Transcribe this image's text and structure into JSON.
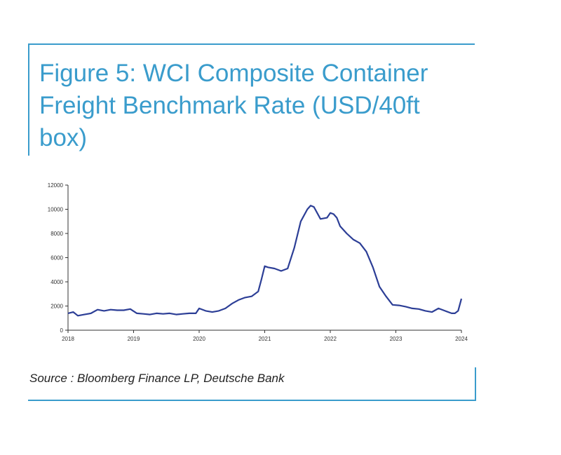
{
  "figure": {
    "title": "Figure 5: WCI Composite Container Freight Benchmark Rate (USD/40ft box)",
    "source": "Source : Bloomberg Finance LP, Deutsche Bank"
  },
  "colors": {
    "accent": "#3a9ccc",
    "line": "#2c3e96",
    "axis": "#333333"
  },
  "chart_data": {
    "type": "line",
    "title": "Figure 5: WCI Composite Container Freight Benchmark Rate (USD/40ft box)",
    "xlabel": "",
    "ylabel": "",
    "xlim": [
      2018,
      2024
    ],
    "ylim": [
      0,
      12000
    ],
    "yticks": [
      0,
      2000,
      4000,
      6000,
      8000,
      10000,
      12000
    ],
    "ytick_labels": [
      "0",
      "2000",
      "4000",
      "6000",
      "8000",
      "10000",
      "12000"
    ],
    "xticks": [
      2018,
      2019,
      2020,
      2021,
      2022,
      2023,
      2024
    ],
    "xtick_labels": [
      "2018",
      "2019",
      "2020",
      "2021",
      "2022",
      "2023",
      "2024"
    ],
    "grid": false,
    "legend": "none",
    "series": [
      {
        "x": [
          2018.0,
          2018.08,
          2018.15,
          2018.25,
          2018.35,
          2018.45,
          2018.55,
          2018.65,
          2018.75,
          2018.85,
          2018.95,
          2019.05,
          2019.15,
          2019.25,
          2019.35,
          2019.45,
          2019.55,
          2019.65,
          2019.75,
          2019.85,
          2019.95,
          2020.0,
          2020.1,
          2020.2,
          2020.3,
          2020.4,
          2020.5,
          2020.6,
          2020.7,
          2020.8,
          2020.9,
          2020.95,
          2021.0,
          2021.05,
          2021.15,
          2021.25,
          2021.35,
          2021.45,
          2021.55,
          2021.65,
          2021.7,
          2021.75,
          2021.85,
          2021.95,
          2022.0,
          2022.05,
          2022.1,
          2022.15,
          2022.25,
          2022.35,
          2022.45,
          2022.55,
          2022.65,
          2022.75,
          2022.85,
          2022.95,
          2023.05,
          2023.15,
          2023.25,
          2023.35,
          2023.45,
          2023.55,
          2023.65,
          2023.75,
          2023.85,
          2023.9,
          2023.95,
          2024.0
        ],
        "y": [
          1400,
          1500,
          1200,
          1300,
          1400,
          1700,
          1600,
          1700,
          1650,
          1650,
          1750,
          1400,
          1350,
          1300,
          1400,
          1350,
          1400,
          1300,
          1350,
          1400,
          1400,
          1800,
          1600,
          1500,
          1600,
          1800,
          2200,
          2500,
          2700,
          2800,
          3200,
          4200,
          5300,
          5200,
          5100,
          4900,
          5100,
          6800,
          9000,
          10000,
          10300,
          10200,
          9200,
          9300,
          9700,
          9600,
          9300,
          8600,
          8000,
          7500,
          7200,
          6500,
          5200,
          3600,
          2800,
          2100,
          2050,
          1950,
          1800,
          1750,
          1600,
          1500,
          1800,
          1600,
          1400,
          1400,
          1600,
          2600
        ]
      }
    ]
  }
}
